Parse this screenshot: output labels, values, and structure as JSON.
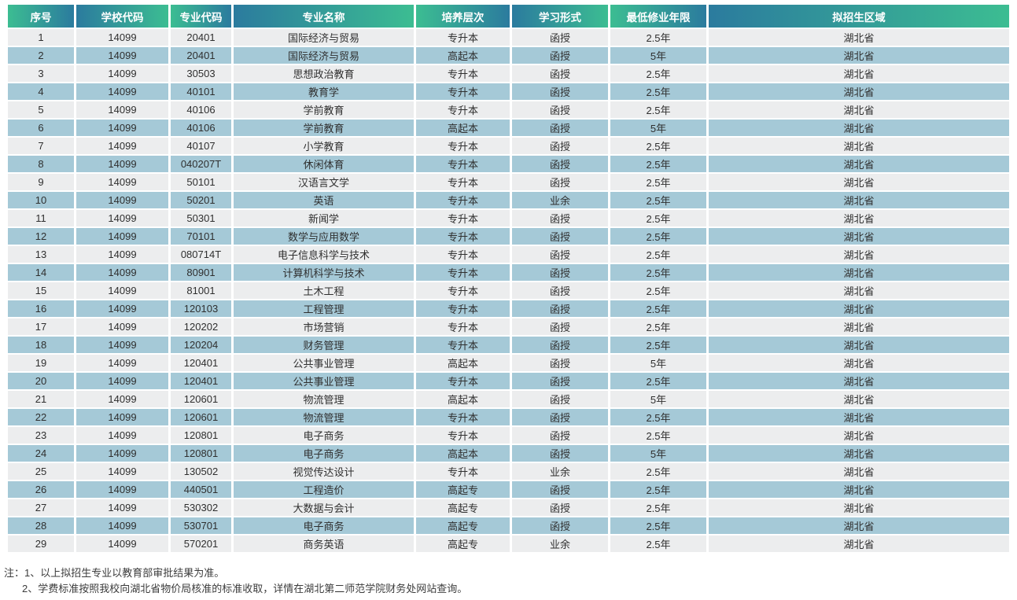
{
  "colors": {
    "header_gradient_green": "#3cbd92",
    "header_gradient_blue": "#2b7b9e",
    "header_text": "#ffffff",
    "row_light": "#ecedee",
    "row_blue": "#a5c9d7",
    "cell_text": "#2f2f2f",
    "note_text": "#3c3c3c"
  },
  "table": {
    "headers": [
      "序号",
      "学校代码",
      "专业代码",
      "专业名称",
      "培养层次",
      "学习形式",
      "最低修业年限",
      "拟招生区域"
    ],
    "rows": [
      [
        "1",
        "14099",
        "20401",
        "国际经济与贸易",
        "专升本",
        "函授",
        "2.5年",
        "湖北省"
      ],
      [
        "2",
        "14099",
        "20401",
        "国际经济与贸易",
        "高起本",
        "函授",
        "5年",
        "湖北省"
      ],
      [
        "3",
        "14099",
        "30503",
        "思想政治教育",
        "专升本",
        "函授",
        "2.5年",
        "湖北省"
      ],
      [
        "4",
        "14099",
        "40101",
        "教育学",
        "专升本",
        "函授",
        "2.5年",
        "湖北省"
      ],
      [
        "5",
        "14099",
        "40106",
        "学前教育",
        "专升本",
        "函授",
        "2.5年",
        "湖北省"
      ],
      [
        "6",
        "14099",
        "40106",
        "学前教育",
        "高起本",
        "函授",
        "5年",
        "湖北省"
      ],
      [
        "7",
        "14099",
        "40107",
        "小学教育",
        "专升本",
        "函授",
        "2.5年",
        "湖北省"
      ],
      [
        "8",
        "14099",
        "040207T",
        "休闲体育",
        "专升本",
        "函授",
        "2.5年",
        "湖北省"
      ],
      [
        "9",
        "14099",
        "50101",
        "汉语言文学",
        "专升本",
        "函授",
        "2.5年",
        "湖北省"
      ],
      [
        "10",
        "14099",
        "50201",
        "英语",
        "专升本",
        "业余",
        "2.5年",
        "湖北省"
      ],
      [
        "11",
        "14099",
        "50301",
        "新闻学",
        "专升本",
        "函授",
        "2.5年",
        "湖北省"
      ],
      [
        "12",
        "14099",
        "70101",
        "数学与应用数学",
        "专升本",
        "函授",
        "2.5年",
        "湖北省"
      ],
      [
        "13",
        "14099",
        "080714T",
        "电子信息科学与技术",
        "专升本",
        "函授",
        "2.5年",
        "湖北省"
      ],
      [
        "14",
        "14099",
        "80901",
        "计算机科学与技术",
        "专升本",
        "函授",
        "2.5年",
        "湖北省"
      ],
      [
        "15",
        "14099",
        "81001",
        "土木工程",
        "专升本",
        "函授",
        "2.5年",
        "湖北省"
      ],
      [
        "16",
        "14099",
        "120103",
        "工程管理",
        "专升本",
        "函授",
        "2.5年",
        "湖北省"
      ],
      [
        "17",
        "14099",
        "120202",
        "市场营销",
        "专升本",
        "函授",
        "2.5年",
        "湖北省"
      ],
      [
        "18",
        "14099",
        "120204",
        "财务管理",
        "专升本",
        "函授",
        "2.5年",
        "湖北省"
      ],
      [
        "19",
        "14099",
        "120401",
        "公共事业管理",
        "高起本",
        "函授",
        "5年",
        "湖北省"
      ],
      [
        "20",
        "14099",
        "120401",
        "公共事业管理",
        "专升本",
        "函授",
        "2.5年",
        "湖北省"
      ],
      [
        "21",
        "14099",
        "120601",
        "物流管理",
        "高起本",
        "函授",
        "5年",
        "湖北省"
      ],
      [
        "22",
        "14099",
        "120601",
        "物流管理",
        "专升本",
        "函授",
        "2.5年",
        "湖北省"
      ],
      [
        "23",
        "14099",
        "120801",
        "电子商务",
        "专升本",
        "函授",
        "2.5年",
        "湖北省"
      ],
      [
        "24",
        "14099",
        "120801",
        "电子商务",
        "高起本",
        "函授",
        "5年",
        "湖北省"
      ],
      [
        "25",
        "14099",
        "130502",
        "视觉传达设计",
        "专升本",
        "业余",
        "2.5年",
        "湖北省"
      ],
      [
        "26",
        "14099",
        "440501",
        "工程造价",
        "高起专",
        "函授",
        "2.5年",
        "湖北省"
      ],
      [
        "27",
        "14099",
        "530302",
        "大数据与会计",
        "高起专",
        "函授",
        "2.5年",
        "湖北省"
      ],
      [
        "28",
        "14099",
        "530701",
        "电子商务",
        "高起专",
        "函授",
        "2.5年",
        "湖北省"
      ],
      [
        "29",
        "14099",
        "570201",
        "商务英语",
        "高起专",
        "业余",
        "2.5年",
        "湖北省"
      ]
    ]
  },
  "notes": {
    "line1": "注：1、以上拟招生专业以教育部审批结果为准。",
    "line2": "2、学费标准按照我校向湖北省物价局核准的标准收取，详情在湖北第二师范学院财务处网站查询。"
  }
}
